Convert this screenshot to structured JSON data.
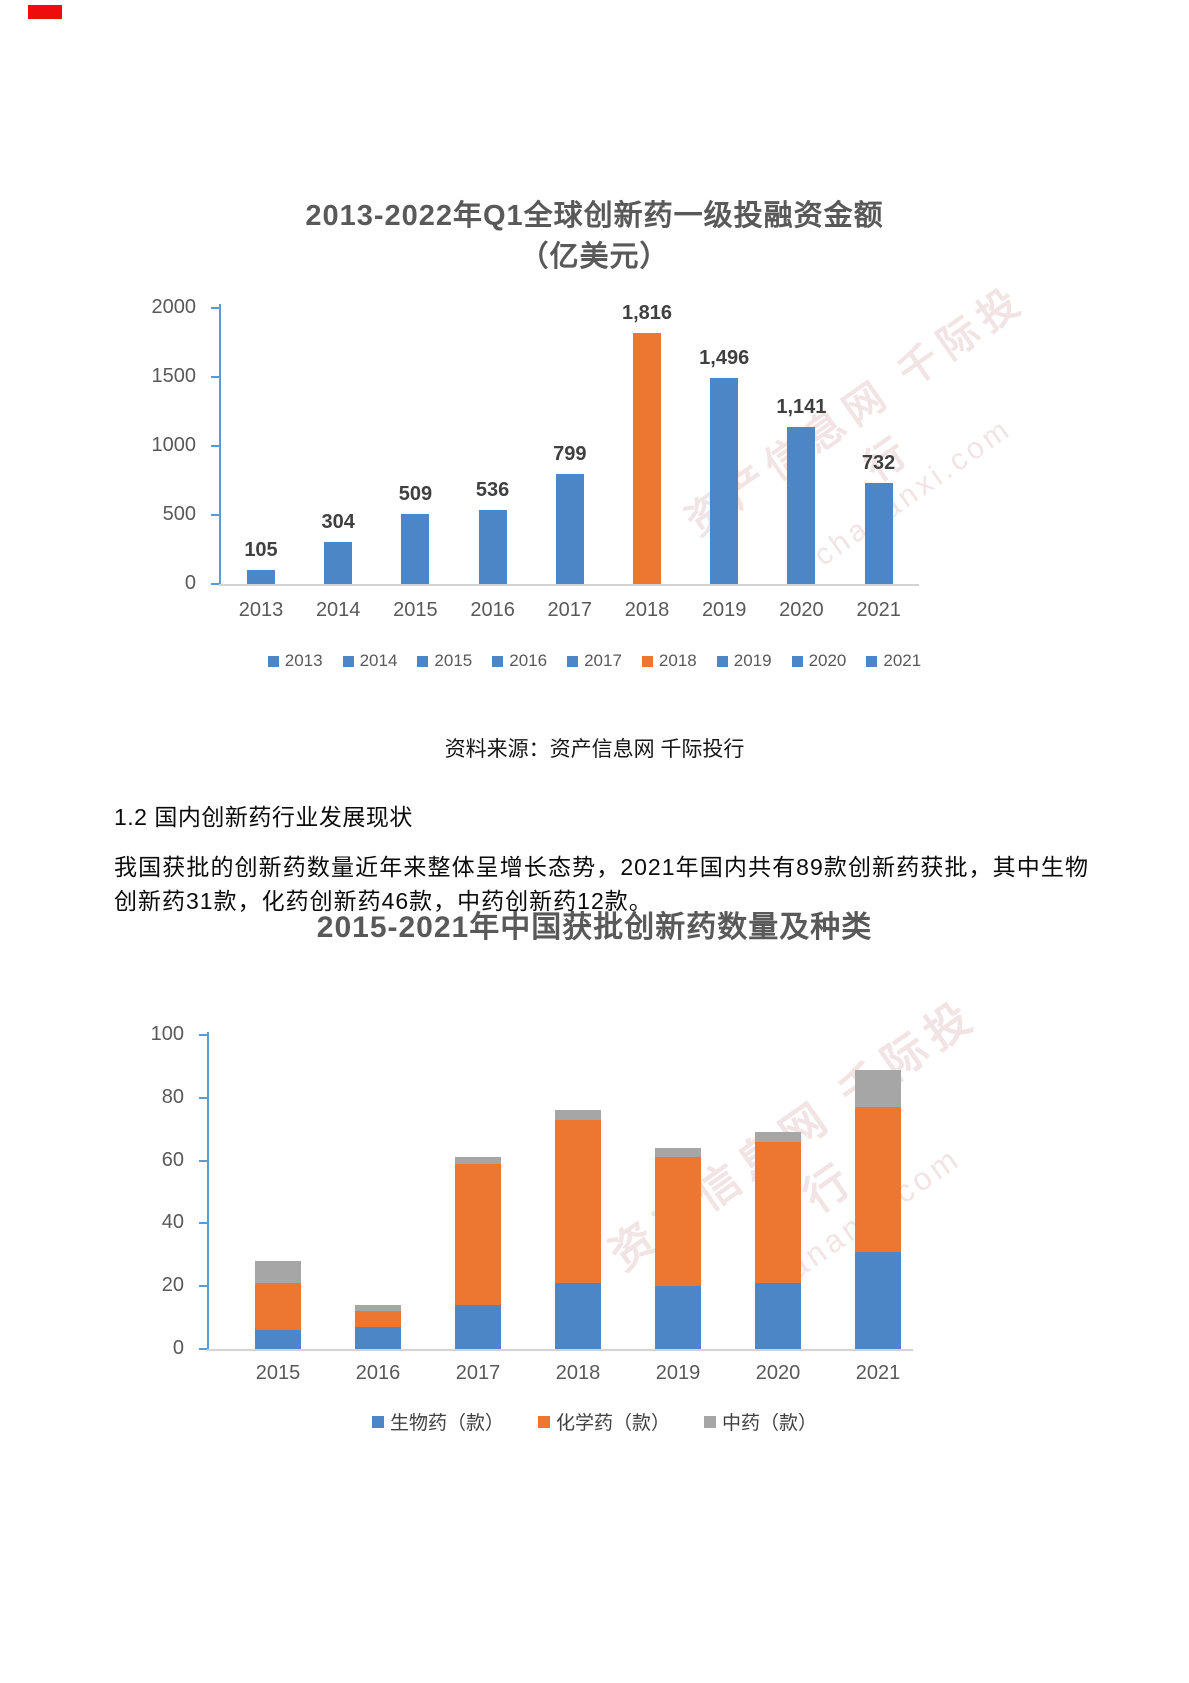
{
  "corner_mark": {
    "color": "#ee0d0d"
  },
  "source_note": "资料来源：资产信息网 千际投行",
  "section": {
    "heading": "1.2 国内创新药行业发展现状",
    "paragraph": "我国获批的创新药数量近年来整体呈增长态势，2021年国内共有89款创新药获批，其中生物创新药31款，化药创新药46款，中药创新药12款。"
  },
  "watermark": {
    "text": "资产信息网 千际投行",
    "sub": "chananxi.com"
  },
  "colors": {
    "bar_blue": "#4d86c6",
    "bar_orange": "#ed7631",
    "bar_gray": "#a6a6a6",
    "axis_blue": "#5b9bd5",
    "grid_gray": "#d4d4d4",
    "title_gray": "#595959",
    "data_label": "#404040"
  },
  "chart_data": [
    {
      "type": "bar",
      "title": "2013-2022年Q1全球创新药一级投融资金额",
      "subtitle": "（亿美元）",
      "categories": [
        "2013",
        "2014",
        "2015",
        "2016",
        "2017",
        "2018",
        "2019",
        "2020",
        "2021"
      ],
      "values": [
        105,
        304,
        509,
        536,
        799,
        1816,
        1496,
        1141,
        732
      ],
      "value_labels": [
        "105",
        "304",
        "509",
        "536",
        "799",
        "1,816",
        "1,496",
        "1,141",
        "732"
      ],
      "highlight_index": 5,
      "y_ticks": [
        2000,
        1500,
        1000,
        500,
        0
      ],
      "ylim": [
        0,
        2000
      ],
      "xlabel": "",
      "ylabel": "",
      "grid": false,
      "legend_position": "bottom",
      "legend": [
        "2013",
        "2014",
        "2015",
        "2016",
        "2017",
        "2018",
        "2019",
        "2020",
        "2021"
      ]
    },
    {
      "type": "bar",
      "stacked": true,
      "title": "2015-2021年中国获批创新药数量及种类",
      "categories": [
        "2015",
        "2016",
        "2017",
        "2018",
        "2019",
        "2020",
        "2021"
      ],
      "series": [
        {
          "name": "生物药（款）",
          "color": "#4d86c6",
          "values": [
            6,
            7,
            14,
            21,
            20,
            21,
            31
          ]
        },
        {
          "name": "化学药（款）",
          "color": "#ed7631",
          "values": [
            15,
            5,
            45,
            52,
            41,
            45,
            46
          ]
        },
        {
          "name": "中药（款）",
          "color": "#a6a6a6",
          "values": [
            7,
            2,
            2,
            3,
            3,
            3,
            12
          ]
        }
      ],
      "totals": [
        28,
        14,
        61,
        76,
        64,
        69,
        89
      ],
      "y_ticks": [
        100,
        80,
        60,
        40,
        20,
        0
      ],
      "ylim": [
        0,
        100
      ],
      "xlabel": "",
      "ylabel": "",
      "grid": false,
      "legend_position": "bottom"
    }
  ]
}
